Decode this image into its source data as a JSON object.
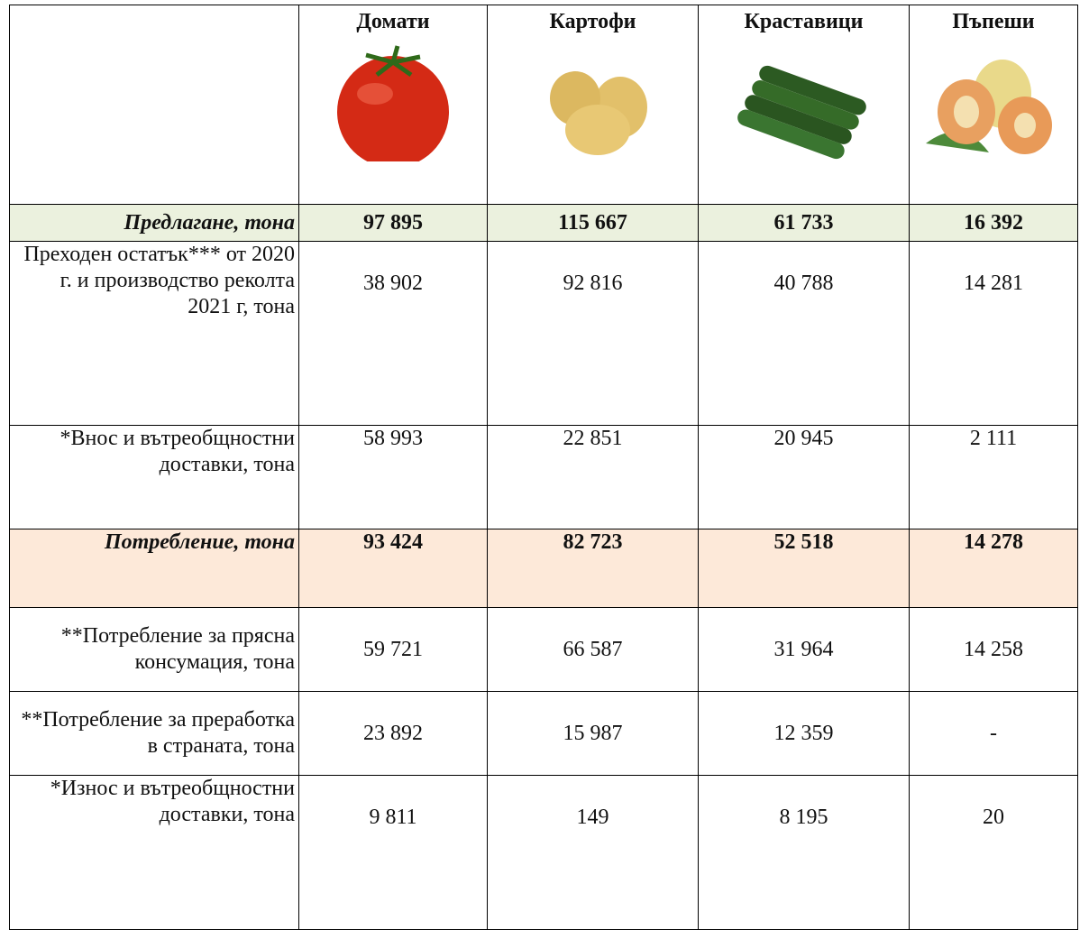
{
  "table": {
    "columns": [
      "Домати",
      "Картофи",
      "Краставици",
      "Пъпеши"
    ],
    "rows": [
      {
        "label": "Предлагане, тона",
        "values": [
          "97 895",
          "115 667",
          "61 733",
          "16 392"
        ]
      },
      {
        "label": "Преходен остатък*** от 2020 г. и производство реколта 2021 г, тона",
        "values": [
          "38 902",
          "92 816",
          "40 788",
          "14 281"
        ]
      },
      {
        "label": "*Внос и вътреобщностни доставки, тона",
        "values": [
          "58 993",
          "22 851",
          "20 945",
          "2 111"
        ]
      },
      {
        "label": "Потребление, тона",
        "values": [
          "93 424",
          "82 723",
          "52 518",
          "14 278"
        ]
      },
      {
        "label": "**Потребление за прясна консумация, тона",
        "values": [
          "59 721",
          "66 587",
          "31 964",
          "14 258"
        ]
      },
      {
        "label": "**Потребление за преработка в страната, тона",
        "values": [
          "23 892",
          "15 987",
          "12 359",
          "-"
        ]
      },
      {
        "label": "*Износ и вътреобщностни доставки, тона",
        "values": [
          "9 811",
          "149",
          "8 195",
          "20"
        ]
      }
    ]
  }
}
